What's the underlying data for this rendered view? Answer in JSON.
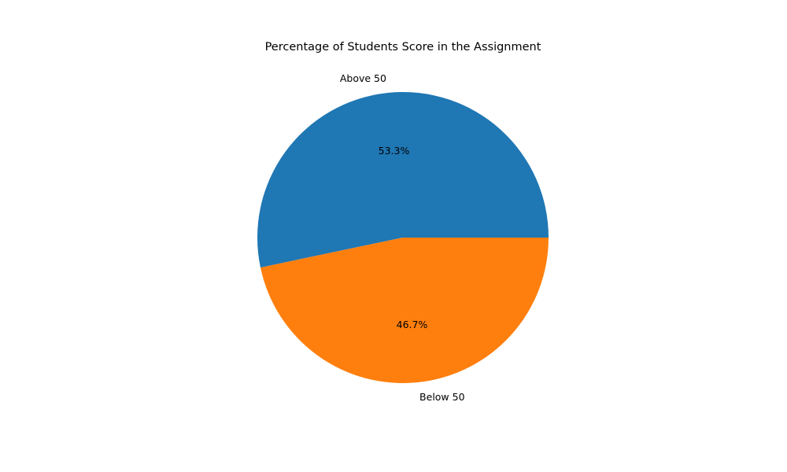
{
  "chart_data": {
    "type": "pie",
    "title": "Percentage of Students Score in the Assignment",
    "slices": [
      {
        "label": "Above 50",
        "value": 53.3,
        "pct_label": "53.3%",
        "color": "#1f77b4"
      },
      {
        "label": "Below 50",
        "value": 46.7,
        "pct_label": "46.7%",
        "color": "#ff7f0e"
      }
    ],
    "start_angle_deg": 0,
    "direction": "counterclockwise",
    "legend": "none"
  }
}
